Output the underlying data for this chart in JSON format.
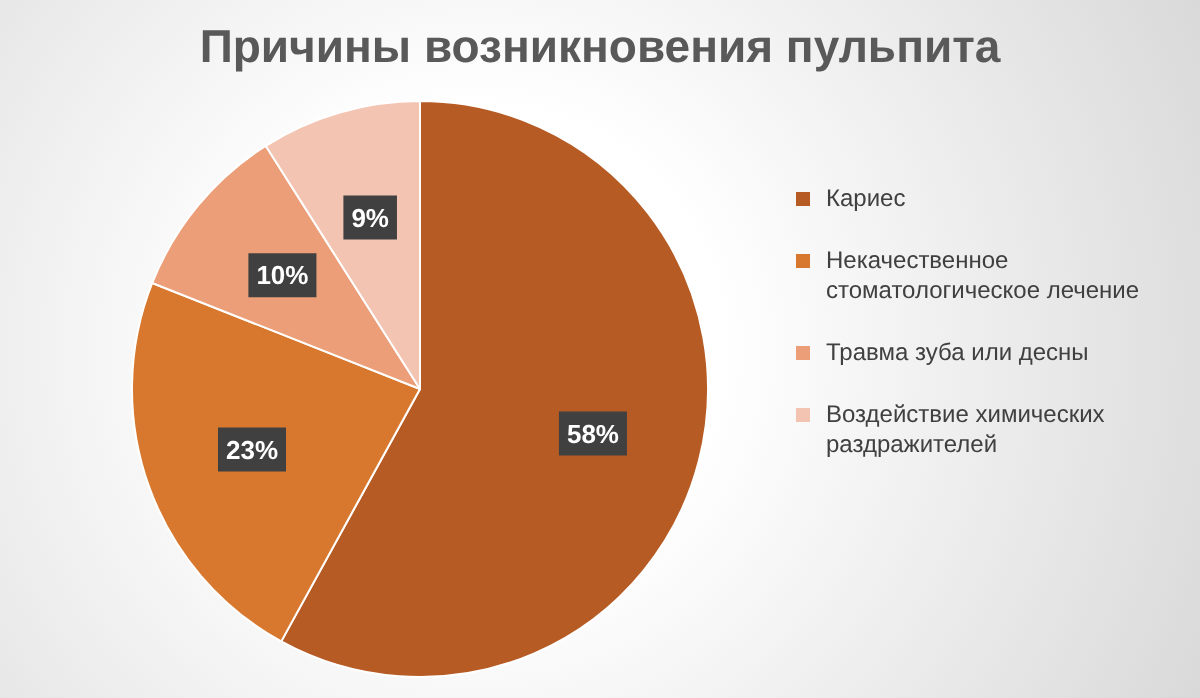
{
  "chart_data": {
    "type": "pie",
    "title": "Причины возникновения пульпита",
    "categories": [
      "Кариес",
      "Некачественное стоматологическое лечение",
      "Травма зуба или десны",
      "Воздействие химических раздражителей"
    ],
    "values": [
      58,
      23,
      10,
      9
    ],
    "colors": [
      "#b65b24",
      "#d8782f",
      "#eb9e77",
      "#f3c4b2"
    ],
    "value_labels": [
      "58%",
      "23%",
      "10%",
      "9%"
    ],
    "legend": "right"
  }
}
